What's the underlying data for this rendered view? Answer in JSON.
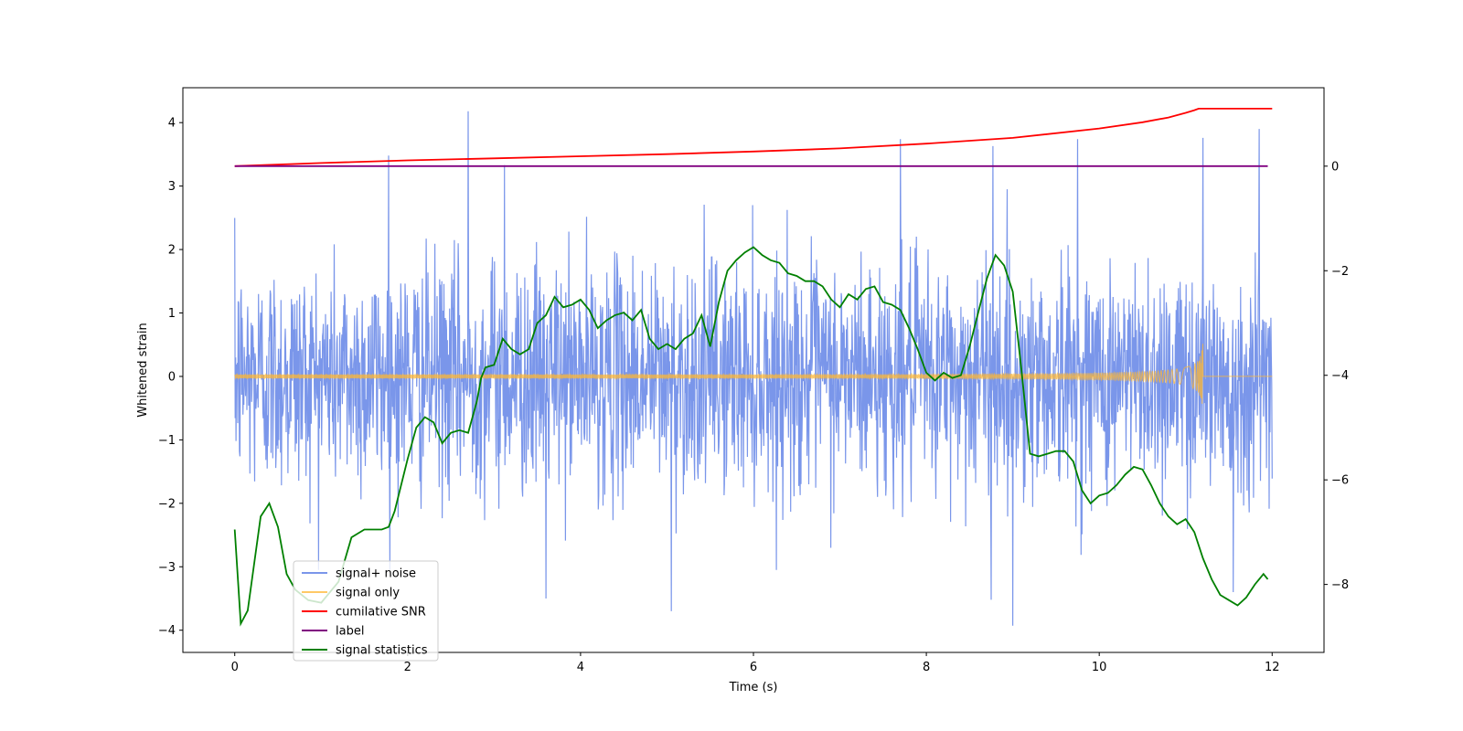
{
  "chart_data": {
    "type": "line",
    "xlabel": "Time (s)",
    "ylabel": "Whitened strain",
    "y2label": "",
    "xlim": [
      -0.6,
      12.6
    ],
    "ylim": [
      -4.35,
      4.55
    ],
    "y2lim": [
      -9.3,
      1.5
    ],
    "x_ticks": [
      0,
      2,
      4,
      6,
      8,
      10,
      12
    ],
    "y_ticks": [
      -4,
      -3,
      -2,
      -1,
      0,
      1,
      2,
      3,
      4
    ],
    "y2_ticks": [
      -8,
      -6,
      -4,
      -2,
      0
    ],
    "legend_position": "lower-left",
    "grid": false,
    "series": [
      {
        "name": "signal+ noise",
        "axis": "left",
        "color": "#4169e1",
        "style": "noise",
        "x_range": [
          0,
          12
        ],
        "std": 0.9,
        "spikes": [
          {
            "x": 1.78,
            "y": 3.48
          },
          {
            "x": 2.7,
            "y": 4.18
          },
          {
            "x": 3.12,
            "y": 3.33
          },
          {
            "x": 7.7,
            "y": 3.74
          },
          {
            "x": 8.77,
            "y": 3.63
          },
          {
            "x": 9.75,
            "y": 3.74
          },
          {
            "x": 11.2,
            "y": 3.76
          },
          {
            "x": 11.85,
            "y": 3.9
          },
          {
            "x": 5.05,
            "y": -3.7
          },
          {
            "x": 8.75,
            "y": -3.52
          },
          {
            "x": 9.0,
            "y": -3.93
          },
          {
            "x": 3.6,
            "y": -3.5
          },
          {
            "x": 11.55,
            "y": -3.4
          }
        ]
      },
      {
        "name": "signal only",
        "axis": "left",
        "color": "#ffb733",
        "style": "chirp",
        "x_range": [
          0,
          12
        ],
        "merger_time": 11.2,
        "final_amplitude": 0.6,
        "start_amplitude": 0.03
      },
      {
        "name": "cumilative SNR",
        "axis": "right",
        "color": "#ff0000",
        "x": [
          0,
          1,
          2,
          3,
          4,
          5,
          6,
          7,
          8,
          9,
          10,
          10.5,
          10.8,
          11.0,
          11.1,
          11.15,
          11.2,
          12
        ],
        "values": [
          0,
          0.06,
          0.11,
          0.15,
          0.19,
          0.23,
          0.28,
          0.34,
          0.43,
          0.54,
          0.72,
          0.84,
          0.93,
          1.02,
          1.07,
          1.1,
          1.1,
          1.1
        ]
      },
      {
        "name": "label",
        "axis": "right",
        "color": "#800080",
        "x": [
          0,
          11.95
        ],
        "values": [
          0,
          0
        ]
      },
      {
        "name": "signal statistics",
        "axis": "right",
        "color": "#008000",
        "x": [
          0,
          0.07,
          0.15,
          0.3,
          0.4,
          0.5,
          0.6,
          0.7,
          0.85,
          1.0,
          1.2,
          1.35,
          1.5,
          1.6,
          1.7,
          1.78,
          1.85,
          2.0,
          2.1,
          2.2,
          2.3,
          2.4,
          2.5,
          2.6,
          2.7,
          2.8,
          2.85,
          2.9,
          3.0,
          3.1,
          3.2,
          3.3,
          3.4,
          3.5,
          3.6,
          3.7,
          3.8,
          3.9,
          4.0,
          4.1,
          4.2,
          4.3,
          4.4,
          4.5,
          4.6,
          4.7,
          4.8,
          4.9,
          5.0,
          5.1,
          5.2,
          5.3,
          5.4,
          5.5,
          5.6,
          5.7,
          5.8,
          5.9,
          6.0,
          6.1,
          6.2,
          6.3,
          6.4,
          6.5,
          6.6,
          6.7,
          6.8,
          6.9,
          7.0,
          7.1,
          7.2,
          7.3,
          7.4,
          7.5,
          7.6,
          7.7,
          7.8,
          7.9,
          8.0,
          8.1,
          8.2,
          8.3,
          8.4,
          8.5,
          8.6,
          8.7,
          8.8,
          8.9,
          9.0,
          9.1,
          9.2,
          9.3,
          9.4,
          9.5,
          9.6,
          9.7,
          9.8,
          9.9,
          10.0,
          10.1,
          10.2,
          10.3,
          10.4,
          10.5,
          10.6,
          10.7,
          10.8,
          10.9,
          11.0,
          11.1,
          11.2,
          11.3,
          11.4,
          11.5,
          11.6,
          11.7,
          11.8,
          11.9,
          11.95
        ],
        "values": [
          -6.95,
          -8.75,
          -8.5,
          -6.7,
          -6.45,
          -6.9,
          -7.8,
          -8.1,
          -8.3,
          -8.35,
          -7.95,
          -7.1,
          -6.95,
          -6.95,
          -6.95,
          -6.9,
          -6.6,
          -5.6,
          -5.0,
          -4.8,
          -4.9,
          -5.3,
          -5.1,
          -5.05,
          -5.1,
          -4.5,
          -4.05,
          -3.85,
          -3.8,
          -3.3,
          -3.5,
          -3.6,
          -3.5,
          -3.0,
          -2.85,
          -2.5,
          -2.7,
          -2.65,
          -2.55,
          -2.75,
          -3.1,
          -2.95,
          -2.85,
          -2.8,
          -2.95,
          -2.75,
          -3.3,
          -3.5,
          -3.4,
          -3.5,
          -3.3,
          -3.2,
          -2.85,
          -3.45,
          -2.6,
          -2.0,
          -1.8,
          -1.65,
          -1.55,
          -1.7,
          -1.8,
          -1.85,
          -2.05,
          -2.1,
          -2.2,
          -2.2,
          -2.3,
          -2.55,
          -2.7,
          -2.45,
          -2.55,
          -2.35,
          -2.3,
          -2.6,
          -2.65,
          -2.75,
          -3.1,
          -3.5,
          -3.95,
          -4.1,
          -3.95,
          -4.05,
          -4.0,
          -3.45,
          -2.8,
          -2.15,
          -1.7,
          -1.9,
          -2.4,
          -3.9,
          -5.5,
          -5.55,
          -5.5,
          -5.45,
          -5.45,
          -5.65,
          -6.2,
          -6.45,
          -6.3,
          -6.25,
          -6.1,
          -5.9,
          -5.75,
          -5.8,
          -6.1,
          -6.45,
          -6.7,
          -6.85,
          -6.75,
          -7.0,
          -7.5,
          -7.9,
          -8.2,
          -8.3,
          -8.4,
          -8.25,
          -8.0,
          -7.8,
          -7.9
        ]
      }
    ]
  }
}
